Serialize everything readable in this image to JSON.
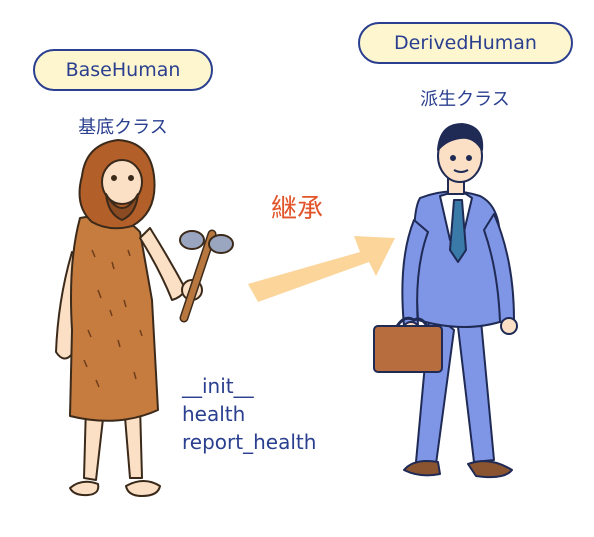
{
  "base_class": {
    "name": "BaseHuman",
    "caption": "基底クラス",
    "members": [
      "__init__",
      "health",
      "report_health"
    ]
  },
  "derived_class": {
    "name": "DerivedHuman",
    "caption": "派生クラス"
  },
  "relation": {
    "label": "継承"
  },
  "colors": {
    "text": "#2a3f8f",
    "pill_fill": "#fdf6cf",
    "arrow": "#fbd59a",
    "relation_label": "#e2552a",
    "suit": "#7f95e6",
    "loincloth": "#c67b3f",
    "bag": "#b76d3d"
  }
}
